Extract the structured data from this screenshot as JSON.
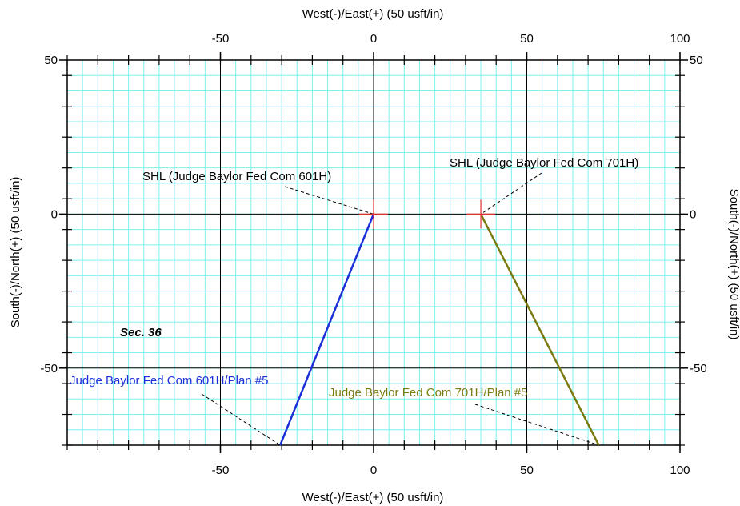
{
  "chart_data": {
    "type": "line",
    "xlabel_top": "West(-)/East(+) (50 usft/in)",
    "xlabel_bottom": "West(-)/East(+) (50 usft/in)",
    "ylabel_left": "South(-)/North(+) (50 usft/in)",
    "ylabel_right": "South(-)/North(+) (50 usft/in)",
    "xlim": [
      -100,
      100
    ],
    "ylim": [
      -75,
      50
    ],
    "x_ticks": [
      -50,
      0,
      50,
      100
    ],
    "y_ticks": [
      -50,
      0,
      50
    ],
    "grid": true,
    "colors": {
      "minor_grid": "#7ff0f0",
      "major_grid": "#000000",
      "series_601H": "#1b2fd8",
      "series_701H": "#7a7a10",
      "shl_marker": "#e03030"
    },
    "series": [
      {
        "name": "Judge Baylor Fed Com 601H/Plan #5",
        "color": "#1b2fd8",
        "points": [
          [
            0,
            0
          ],
          [
            -30.5,
            -75
          ]
        ]
      },
      {
        "name": "Judge Baylor Fed Com 701H/Plan #5",
        "color": "#7a7a10",
        "points": [
          [
            35,
            0
          ],
          [
            73.5,
            -75
          ]
        ]
      }
    ],
    "markers": [
      {
        "label": "SHL (Judge Baylor Fed Com 601H)",
        "x": 0,
        "y": 0
      },
      {
        "label": "SHL (Judge Baylor Fed Com 701H)",
        "x": 35,
        "y": 0
      }
    ],
    "annotations": [
      {
        "text": "Sec. 36"
      }
    ]
  }
}
